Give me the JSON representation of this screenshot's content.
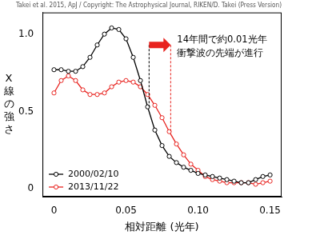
{
  "chart_data": {
    "type": "line",
    "title": "Takei et al. 2015, ApJ / Copyright: The Astrophysical Journal, RIKEN/D. Takei (Press Version)",
    "x_label": "相対距離 (光年)",
    "y_label": "X線の強さ",
    "x": [
      0,
      0.005,
      0.01,
      0.015,
      0.02,
      0.025,
      0.03,
      0.035,
      0.04,
      0.045,
      0.05,
      0.055,
      0.06,
      0.065,
      0.07,
      0.075,
      0.08,
      0.085,
      0.09,
      0.095,
      0.1,
      0.105,
      0.11,
      0.115,
      0.12,
      0.125,
      0.13,
      0.135,
      0.14,
      0.145,
      0.15
    ],
    "series": [
      {
        "name": "2000/02/10",
        "color": "#000000",
        "marker": "circle",
        "values": [
          0.77,
          0.77,
          0.76,
          0.76,
          0.79,
          0.85,
          0.93,
          1.0,
          1.04,
          1.03,
          0.97,
          0.85,
          0.7,
          0.53,
          0.38,
          0.28,
          0.21,
          0.17,
          0.14,
          0.12,
          0.1,
          0.09,
          0.08,
          0.07,
          0.06,
          0.05,
          0.04,
          0.04,
          0.06,
          0.08,
          0.09
        ]
      },
      {
        "name": "2013/11/22",
        "color": "#e8231f",
        "marker": "circle",
        "values": [
          0.62,
          0.7,
          0.73,
          0.7,
          0.64,
          0.61,
          0.61,
          0.62,
          0.66,
          0.69,
          0.7,
          0.69,
          0.66,
          0.61,
          0.54,
          0.46,
          0.37,
          0.29,
          0.22,
          0.16,
          0.12,
          0.08,
          0.06,
          0.05,
          0.04,
          0.04,
          0.04,
          0.04,
          0.03,
          0.04,
          0.05
        ]
      }
    ],
    "xlim": [
      -0.008,
      0.158
    ],
    "ylim": [
      -0.05,
      1.14
    ],
    "xticks": [
      0,
      0.05,
      {
        "value": 0.1,
        "label": "0.10"
      },
      0.15
    ],
    "yticks": [
      0,
      0.5,
      {
        "value": 1,
        "label": "1.0"
      }
    ],
    "grid": false,
    "legend": "lower left",
    "annotation": {
      "text": [
        "14年間で約0.01光年",
        "衝撃波の先端が進行"
      ],
      "x": [
        0.066,
        0.081
      ],
      "y": 0.93
    }
  }
}
